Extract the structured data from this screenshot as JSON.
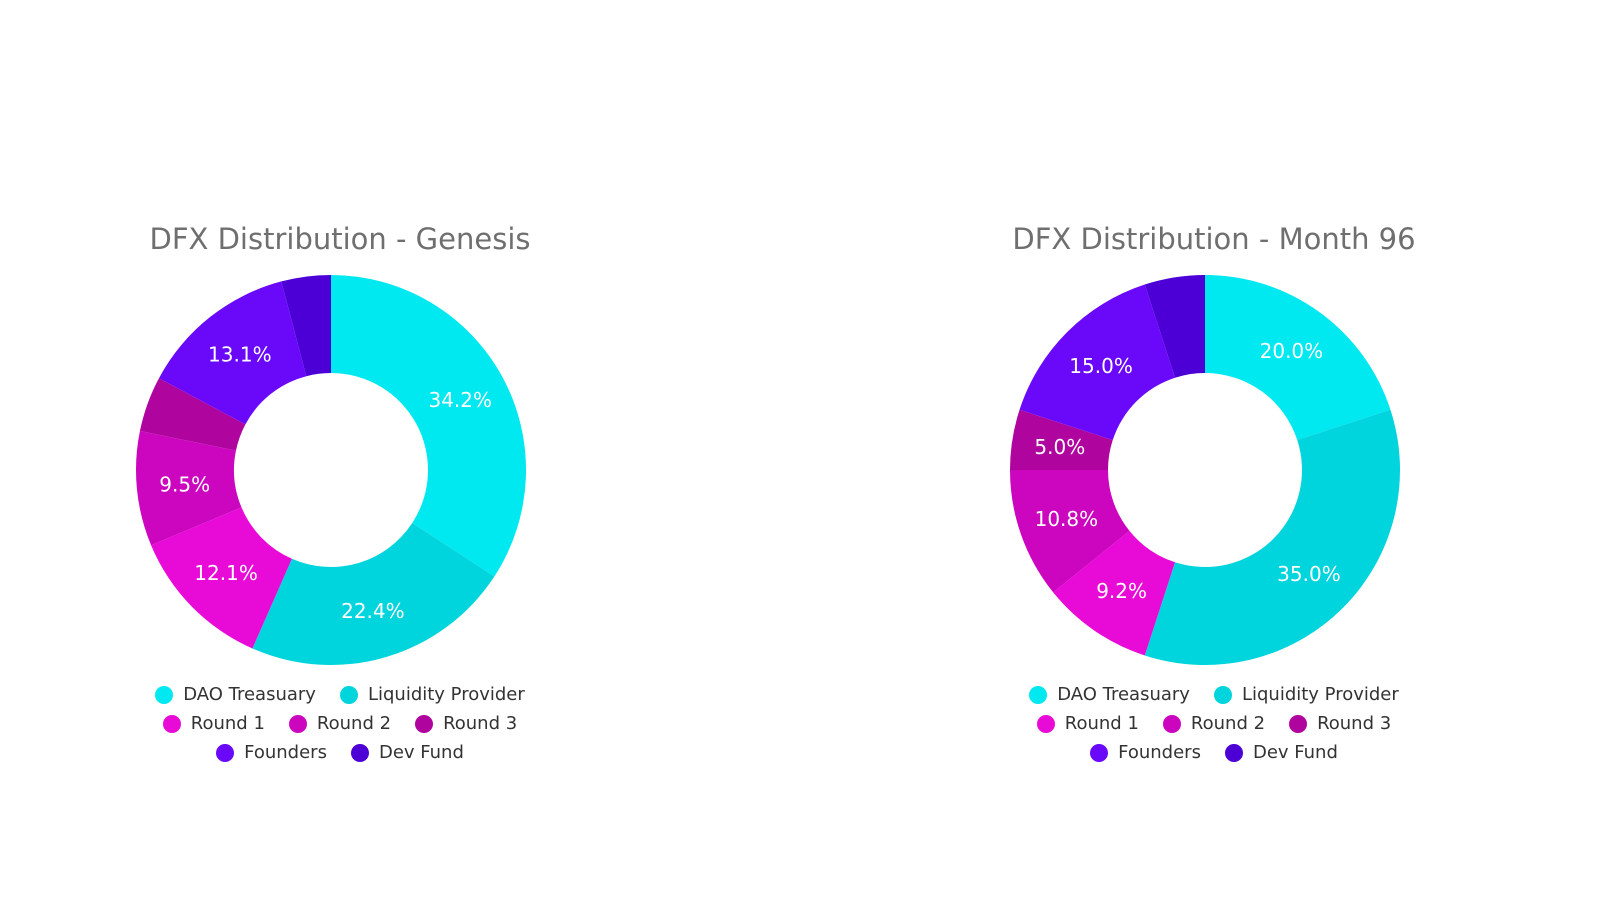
{
  "chart_data": [
    {
      "type": "pie",
      "variant": "donut",
      "title": "DFX Distribution - Genesis",
      "legend": "bottom",
      "slices": [
        {
          "name": "DAO Treasuary",
          "value": 34.2,
          "label": "34.2%",
          "color": "#00e8f0"
        },
        {
          "name": "Liquidity Provider",
          "value": 22.4,
          "label": "22.4%",
          "color": "#00d4dc"
        },
        {
          "name": "Round 1",
          "value": 12.1,
          "label": "12.1%",
          "color": "#e80ad6"
        },
        {
          "name": "Round 2",
          "value": 9.5,
          "label": "9.5%",
          "color": "#cc06bf"
        },
        {
          "name": "Round 3",
          "value": 4.6,
          "label": "",
          "color": "#b0049f"
        },
        {
          "name": "Founders",
          "value": 13.1,
          "label": "13.1%",
          "color": "#6a08fa"
        },
        {
          "name": "Dev Fund",
          "value": 4.1,
          "label": "",
          "color": "#4d00d6"
        }
      ]
    },
    {
      "type": "pie",
      "variant": "donut",
      "title": "DFX Distribution - Month 96",
      "legend": "bottom",
      "slices": [
        {
          "name": "DAO Treasuary",
          "value": 20.0,
          "label": "20.0%",
          "color": "#00e8f0"
        },
        {
          "name": "Liquidity Provider",
          "value": 35.0,
          "label": "35.0%",
          "color": "#00d4dc"
        },
        {
          "name": "Round 1",
          "value": 9.2,
          "label": "9.2%",
          "color": "#e80ad6"
        },
        {
          "name": "Round 2",
          "value": 10.8,
          "label": "10.8%",
          "color": "#cc06bf"
        },
        {
          "name": "Round 3",
          "value": 5.0,
          "label": "5.0%",
          "color": "#b0049f"
        },
        {
          "name": "Founders",
          "value": 15.0,
          "label": "15.0%",
          "color": "#6a08fa"
        },
        {
          "name": "Dev Fund",
          "value": 5.0,
          "label": "",
          "color": "#4d00d6"
        }
      ]
    }
  ]
}
